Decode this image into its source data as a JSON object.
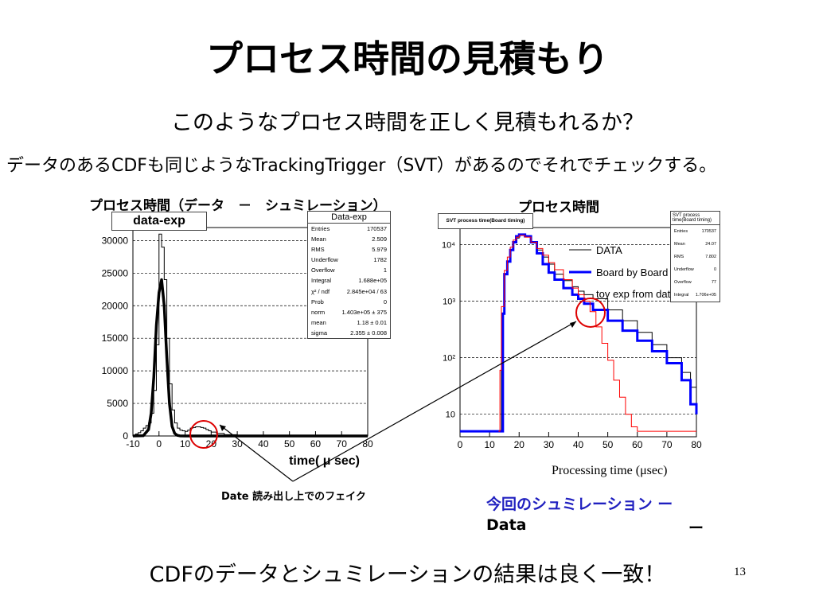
{
  "slide": {
    "title": "プロセス時間の見積もり",
    "subtitle": "このようなプロセス時間を正しく見積もれるか？",
    "line3": "データのあるCDFも同じようなTrackingTrigger（SVT）があるのでそれでチェックする。",
    "footer": "CDFのデータとシュミレーションの結果は良く一致！",
    "page_number": "13"
  },
  "left_panel": {
    "heading": "プロセス時間（データ　－　シュミレーション）",
    "hist_label": "data-exp",
    "stats_title": "Data-exp",
    "stats": [
      {
        "k": "Entries",
        "v": "170537"
      },
      {
        "k": "Mean",
        "v": "2.509"
      },
      {
        "k": "RMS",
        "v": "5.979"
      },
      {
        "k": "Underflow",
        "v": "1782"
      },
      {
        "k": "Overflow",
        "v": "1"
      },
      {
        "k": "Integral",
        "v": "1.688e+05"
      },
      {
        "k": "χ² / ndf",
        "v": "2.845e+04 / 63"
      },
      {
        "k": "Prob",
        "v": "0"
      },
      {
        "k": "norm",
        "v": "1.403e+05 ± 375"
      },
      {
        "k": "mean",
        "v": "1.18 ± 0.01"
      },
      {
        "k": "sigma",
        "v": "2.355 ± 0.008"
      }
    ],
    "note": "Date 読み出し上でのフェイク"
  },
  "right_panel": {
    "heading": "プロセス時間",
    "hist_label": "SVT process time(Board timing)",
    "stats_title": "SVT process time(Board timing)",
    "stats": [
      {
        "k": "Entries",
        "v": "170537"
      },
      {
        "k": "Mean",
        "v": "24.07"
      },
      {
        "k": "RMS",
        "v": "7.802"
      },
      {
        "k": "Underflow",
        "v": "0"
      },
      {
        "k": "Overflow",
        "v": "77"
      },
      {
        "k": "Integral",
        "v": "1.706e+05"
      }
    ],
    "caption": "Processing time (μsec)",
    "sim_label": "今回のシュミレーション ー",
    "data_label": "Data",
    "data_dash": "ー"
  },
  "chart_data": [
    {
      "type": "line",
      "title": "data-exp",
      "xlabel": "time( μ sec)",
      "ylabel": "",
      "xlim": [
        -10,
        80
      ],
      "ylim": [
        0,
        32000
      ],
      "xticks": [
        "-10",
        "0",
        "10",
        "20",
        "30",
        "40",
        "50",
        "60",
        "70",
        "80"
      ],
      "yticks": [
        "0",
        "5000",
        "10000",
        "15000",
        "20000",
        "25000",
        "30000"
      ],
      "grid": true,
      "series": [
        {
          "name": "",
          "style": "histogram",
          "x": [
            -10,
            -9,
            -8,
            -7,
            -6,
            -5,
            -4,
            -3,
            -2,
            -1,
            0,
            1,
            2,
            3,
            4,
            5,
            6,
            7,
            8,
            9,
            10,
            11,
            12,
            13,
            14,
            15,
            16,
            17,
            18,
            19,
            20,
            22,
            25,
            30,
            40,
            50,
            60,
            70,
            80
          ],
          "y": [
            0,
            300,
            500,
            800,
            1200,
            1600,
            2000,
            3500,
            7000,
            14000,
            31000,
            29000,
            24000,
            15000,
            8000,
            4000,
            2000,
            1200,
            900,
            800,
            700,
            900,
            1200,
            1300,
            1400,
            1400,
            1300,
            1200,
            1000,
            800,
            600,
            400,
            200,
            100,
            50,
            20,
            10,
            0,
            0
          ]
        },
        {
          "name": "",
          "style": "fit",
          "x": [
            -10,
            -6,
            -4,
            -3,
            -2,
            -1,
            0,
            1,
            2,
            3,
            4,
            5,
            6,
            7,
            8,
            10,
            20,
            40,
            80
          ],
          "y": [
            0,
            50,
            1000,
            3500,
            9000,
            17000,
            22000,
            24000,
            20000,
            12000,
            5000,
            1500,
            400,
            100,
            20,
            0,
            0,
            0,
            0
          ]
        }
      ]
    },
    {
      "type": "line",
      "title": "SVT process time(Board timing)",
      "xlabel": "Processing time (μsec)",
      "ylabel": "",
      "yscale": "log",
      "xlim": [
        0,
        80
      ],
      "ylim": [
        4,
        20000
      ],
      "xticks": [
        "0",
        "10",
        "20",
        "30",
        "40",
        "50",
        "60",
        "70",
        "80"
      ],
      "yticks": [
        "10",
        "10²",
        "10³",
        "10⁴"
      ],
      "grid": true,
      "legend": "top-right",
      "series": [
        {
          "name": "DATA",
          "color": "#000000",
          "x": [
            0,
            13,
            14,
            15,
            16,
            17,
            18,
            19,
            20,
            22,
            24,
            26,
            28,
            30,
            32,
            35,
            38,
            40,
            42,
            45,
            50,
            55,
            60,
            65,
            70,
            75,
            78,
            80
          ],
          "y": [
            5,
            5,
            600,
            3000,
            5000,
            8000,
            11000,
            13000,
            15000,
            14000,
            11000,
            8000,
            6000,
            4500,
            3000,
            2300,
            1800,
            1500,
            1300,
            1100,
            700,
            450,
            280,
            170,
            100,
            55,
            30,
            20
          ]
        },
        {
          "name": "Board by Board",
          "color": "#0000ff",
          "x": [
            0,
            14,
            14.5,
            15,
            16,
            17,
            18,
            19,
            20,
            22,
            24,
            26,
            28,
            30,
            32,
            35,
            38,
            40,
            42,
            45,
            50,
            55,
            60,
            65,
            70,
            75,
            78,
            80
          ],
          "y": [
            5,
            5,
            600,
            3000,
            5000,
            8000,
            11000,
            14000,
            15000,
            14000,
            11000,
            7000,
            4500,
            3200,
            2400,
            1700,
            1300,
            1100,
            900,
            700,
            450,
            300,
            200,
            130,
            80,
            40,
            15,
            10
          ]
        },
        {
          "name": "toy exp from data",
          "color": "#ff0000",
          "x": [
            13,
            13.5,
            14,
            15,
            16,
            17,
            18,
            19,
            20,
            22,
            24,
            26,
            28,
            30,
            32,
            35,
            38,
            40,
            42,
            44,
            46,
            48,
            50,
            52,
            54,
            56,
            58,
            60,
            65,
            80
          ],
          "y": [
            5,
            60,
            800,
            3500,
            6000,
            9000,
            12000,
            13500,
            14500,
            13500,
            11000,
            8500,
            6500,
            4800,
            3600,
            2400,
            1700,
            1300,
            1000,
            650,
            350,
            180,
            90,
            40,
            20,
            10,
            6,
            5,
            5,
            5
          ]
        }
      ]
    }
  ]
}
